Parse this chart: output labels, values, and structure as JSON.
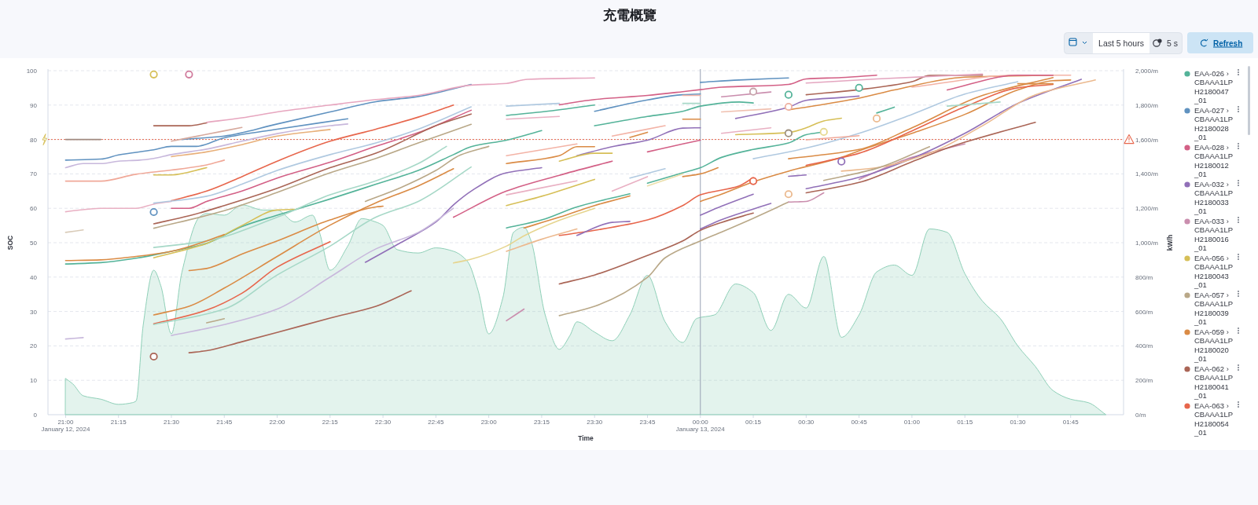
{
  "chart_data": {
    "type": "line",
    "title": "充電概覽",
    "xlabel": "Time",
    "ylabel": "SOC",
    "y2label": "kW/h",
    "annotations": [
      "Last 5 hours",
      "5 s",
      "Refresh"
    ],
    "xlim": [
      "2024-01-12T20:55",
      "2024-01-13T02:00"
    ],
    "xticks": [
      {
        "value": "2024-01-12T21:00",
        "label": "21:00\nJanuary 12, 2024"
      },
      {
        "value": "2024-01-12T21:15",
        "label": "21:15"
      },
      {
        "value": "2024-01-12T21:30",
        "label": "21:30"
      },
      {
        "value": "2024-01-12T21:45",
        "label": "21:45"
      },
      {
        "value": "2024-01-12T22:00",
        "label": "22:00"
      },
      {
        "value": "2024-01-12T22:15",
        "label": "22:15"
      },
      {
        "value": "2024-01-12T22:30",
        "label": "22:30"
      },
      {
        "value": "2024-01-12T22:45",
        "label": "22:45"
      },
      {
        "value": "2024-01-12T23:00",
        "label": "23:00"
      },
      {
        "value": "2024-01-12T23:15",
        "label": "23:15"
      },
      {
        "value": "2024-01-12T23:30",
        "label": "23:30"
      },
      {
        "value": "2024-01-12T23:45",
        "label": "23:45"
      },
      {
        "value": "2024-01-13T00:00",
        "label": "00:00\nJanuary 13, 2024"
      },
      {
        "value": "2024-01-13T00:15",
        "label": "00:15"
      },
      {
        "value": "2024-01-13T00:30",
        "label": "00:30"
      },
      {
        "value": "2024-01-13T00:45",
        "label": "00:45"
      },
      {
        "value": "2024-01-13T01:00",
        "label": "01:00"
      },
      {
        "value": "2024-01-13T01:15",
        "label": "01:15"
      },
      {
        "value": "2024-01-13T01:30",
        "label": "01:30"
      },
      {
        "value": "2024-01-13T01:45",
        "label": "01:45"
      }
    ],
    "ylim": [
      0,
      100
    ],
    "yticks": [
      0,
      10,
      20,
      30,
      40,
      50,
      60,
      70,
      80,
      90,
      100
    ],
    "y2lim": [
      0,
      2000
    ],
    "y2ticks": [
      {
        "value": 0,
        "label": "0/m"
      },
      {
        "value": 200,
        "label": "200/m"
      },
      {
        "value": 400,
        "label": "400/m"
      },
      {
        "value": 600,
        "label": "600/m"
      },
      {
        "value": 800,
        "label": "800/m"
      },
      {
        "value": 1000,
        "label": "1,000/m"
      },
      {
        "value": 1200,
        "label": "1,200/m"
      },
      {
        "value": 1400,
        "label": "1,400/m"
      },
      {
        "value": 1600,
        "label": "1,600/m"
      },
      {
        "value": 1800,
        "label": "1,800/m"
      },
      {
        "value": 2000,
        "label": "2,000/m"
      }
    ],
    "grid": "y",
    "legend": "right",
    "ref_lines": [
      {
        "axis": "y",
        "value": 80,
        "color": "#e7664c",
        "line_style": "dotted"
      },
      {
        "axis": "x",
        "value": "2024-01-13T00:00",
        "color": "#98a2b3",
        "line_style": "solid"
      }
    ],
    "series": [
      {
        "type": "area",
        "axis": "y2",
        "color": "#8fd0b8",
        "x": [
          "2024-01-12T21:00",
          "2024-01-12T21:02",
          "2024-01-12T21:05",
          "2024-01-12T21:10",
          "2024-01-12T21:15",
          "2024-01-12T21:19",
          "2024-01-12T21:20",
          "2024-01-12T21:22",
          "2024-01-12T21:25",
          "2024-01-12T21:27",
          "2024-01-12T21:30",
          "2024-01-12T21:33",
          "2024-01-12T21:38",
          "2024-01-12T21:40",
          "2024-01-12T21:45",
          "2024-01-12T21:50",
          "2024-01-12T21:56",
          "2024-01-12T22:00",
          "2024-01-12T22:05",
          "2024-01-12T22:10",
          "2024-01-12T22:12",
          "2024-01-12T22:15",
          "2024-01-12T22:20",
          "2024-01-12T22:24",
          "2024-01-12T22:28",
          "2024-01-12T22:30",
          "2024-01-12T22:34",
          "2024-01-12T22:40",
          "2024-01-12T22:45",
          "2024-01-12T22:50",
          "2024-01-12T22:54",
          "2024-01-12T22:57",
          "2024-01-12T23:00",
          "2024-01-12T23:04",
          "2024-01-12T23:07",
          "2024-01-12T23:10",
          "2024-01-12T23:12",
          "2024-01-12T23:16",
          "2024-01-12T23:20",
          "2024-01-12T23:23",
          "2024-01-12T23:25",
          "2024-01-12T23:30",
          "2024-01-12T23:35",
          "2024-01-12T23:40",
          "2024-01-12T23:45",
          "2024-01-12T23:50",
          "2024-01-12T23:55",
          "2024-01-12T23:59",
          "2024-01-13T00:04",
          "2024-01-13T00:10",
          "2024-01-13T00:15",
          "2024-01-13T00:20",
          "2024-01-13T00:25",
          "2024-01-13T00:30",
          "2024-01-13T00:35",
          "2024-01-13T00:40",
          "2024-01-13T00:45",
          "2024-01-13T00:50",
          "2024-01-13T00:55",
          "2024-01-13T01:00",
          "2024-01-13T01:05",
          "2024-01-13T01:10",
          "2024-01-13T01:15",
          "2024-01-13T01:20",
          "2024-01-13T01:25",
          "2024-01-13T01:30",
          "2024-01-13T01:35",
          "2024-01-13T01:40",
          "2024-01-13T01:45",
          "2024-01-13T01:50",
          "2024-01-13T01:55"
        ],
        "values": [
          210,
          180,
          110,
          90,
          60,
          70,
          80,
          520,
          840,
          750,
          470,
          830,
          1150,
          1170,
          1160,
          1220,
          1190,
          1190,
          1120,
          1160,
          1060,
          840,
          980,
          1140,
          1120,
          1100,
          960,
          940,
          970,
          950,
          890,
          720,
          470,
          680,
          1060,
          1090,
          1010,
          580,
          380,
          460,
          540,
          480,
          430,
          580,
          810,
          540,
          420,
          560,
          580,
          760,
          710,
          490,
          700,
          620,
          920,
          450,
          580,
          830,
          870,
          810,
          1080,
          1060,
          820,
          660,
          560,
          400,
          280,
          140,
          90,
          70,
          0
        ]
      },
      {
        "name": "EAA-026 › CBAAA1LPH2180047_01",
        "color": "#54b399",
        "x": [
          "2024-01-12T21:00",
          "2024-01-12T21:10",
          "2024-01-12T21:20",
          "2024-01-12T21:30",
          "2024-01-12T21:40",
          "2024-01-12T21:50",
          "2024-01-12T22:00",
          "2024-01-12T22:15",
          "2024-01-12T22:28",
          "2024-01-12T22:40",
          "2024-01-12T22:50",
          "2024-01-12T22:55",
          "2024-01-12T23:05",
          "2024-01-12T23:15"
        ],
        "values": [
          43.8,
          44.2,
          45.5,
          47.5,
          49.8,
          54.7,
          58,
          62.7,
          67,
          71,
          75.6,
          77.9,
          79.8,
          82.6
        ]
      },
      {
        "name": "EAA-027 › CBAAA1LPH2180028_01",
        "color": "#6092c0",
        "x": [
          "2024-01-12T21:33",
          "2024-01-12T21:45",
          "2024-01-12T22:00",
          "2024-01-12T22:15",
          "2024-01-12T22:28",
          "2024-01-12T22:40",
          "2024-01-12T22:55"
        ],
        "values": [
          80,
          81,
          84.5,
          88,
          91,
          92.5,
          96
        ]
      },
      {
        "name": "EAA-028 › CBAAA1LPH2180012_01",
        "color": "#d36086",
        "x": [
          "2024-01-12T21:30",
          "2024-01-12T21:35",
          "2024-01-12T21:40",
          "2024-01-12T21:50",
          "2024-01-12T22:00",
          "2024-01-12T22:15",
          "2024-01-12T22:28",
          "2024-01-12T22:40",
          "2024-01-12T22:55"
        ],
        "values": [
          60,
          60,
          62,
          65,
          68.8,
          73.4,
          78,
          82,
          88.5
        ]
      },
      {
        "name": "EAA-032 › CBAAA1LPH2180033_01",
        "color": "#9170b8",
        "x": [
          "2024-01-12T22:25",
          "2024-01-12T22:35",
          "2024-01-12T22:45",
          "2024-01-12T22:50",
          "2024-01-12T22:55",
          "2024-01-12T23:05",
          "2024-01-12T23:15"
        ],
        "values": [
          44.3,
          50,
          56,
          61,
          65,
          70.3,
          71.8
        ]
      },
      {
        "name": "EAA-033 › CBAAA1LPH2180016_01",
        "color": "#ca8eae",
        "x": [
          "2024-01-13T00:45",
          "2024-01-13T01:00",
          "2024-01-13T01:15"
        ],
        "values": [
          68.4,
          74.8,
          78.7
        ]
      },
      {
        "name": "EAA-056 › CBAAA1LPH2180043_01",
        "color": "#d6bf57",
        "x": [
          "2024-01-12T21:25",
          "2024-01-12T21:40",
          "2024-01-12T21:50",
          "2024-01-12T22:00",
          "2024-01-12T22:05"
        ],
        "values": [
          45.6,
          49.8,
          55,
          59.5,
          59.7
        ]
      },
      {
        "name": "EAA-057 › CBAAA1LPH2180039_01",
        "color": "#b9a888",
        "x": [
          "2024-01-12T23:20",
          "2024-01-12T23:30",
          "2024-01-12T23:45",
          "2024-01-12T23:50",
          "2024-01-13T00:00",
          "2024-01-13T00:06",
          "2024-01-13T00:15",
          "2024-01-13T00:25"
        ],
        "values": [
          28.8,
          31.5,
          39.9,
          45.6,
          50.5,
          53.1,
          57.1,
          61.8
        ]
      },
      {
        "name": "EAA-059 › CBAAA1LPH2180020_01",
        "color": "#da8b45",
        "x": [
          "2024-01-13T00:00",
          "2024-01-13T00:06",
          "2024-01-13T00:15",
          "2024-01-13T00:25",
          "2024-01-13T00:40",
          "2024-01-13T00:45",
          "2024-01-13T01:00",
          "2024-01-13T01:15",
          "2024-01-13T01:30",
          "2024-01-13T01:40",
          "2024-01-13T01:45"
        ],
        "values": [
          62,
          64.1,
          67.7,
          70.8,
          74.8,
          76.7,
          81.8,
          87.3,
          94.4,
          97.1,
          97.3
        ]
      },
      {
        "name": "EAA-062 › CBAAA1LPH2180041_01",
        "color": "#aa6556",
        "x": [
          "2024-01-12T21:35",
          "2024-01-12T21:40",
          "2024-01-12T21:50",
          "2024-01-12T22:00",
          "2024-01-12T22:15",
          "2024-01-12T22:28",
          "2024-01-12T22:38"
        ],
        "values": [
          18,
          18.6,
          21.2,
          23.9,
          28.1,
          31.5,
          36
        ]
      },
      {
        "name": "EAA-063 › CBAAA1LPH2180054_01",
        "color": "#e7664c",
        "x": [
          "2024-01-12T21:30",
          "2024-01-12T21:40",
          "2024-01-12T21:50",
          "2024-01-12T22:00",
          "2024-01-12T22:15",
          "2024-01-12T22:28",
          "2024-01-12T22:40",
          "2024-01-12T22:50"
        ],
        "values": [
          62.2,
          65,
          69.2,
          73.7,
          79.5,
          83,
          86.5,
          90
        ]
      },
      {
        "color": "#a08a80",
        "x": [
          "2024-01-12T21:00",
          "2024-01-12T21:10"
        ],
        "values": [
          80,
          80
        ]
      },
      {
        "color": "#6092c0",
        "x": [
          "2024-01-12T21:00",
          "2024-01-12T21:10",
          "2024-01-12T21:15",
          "2024-01-12T21:25",
          "2024-01-12T21:30",
          "2024-01-12T21:37",
          "2024-01-12T21:45",
          "2024-01-12T22:00",
          "2024-01-12T22:20"
        ],
        "values": [
          74,
          74.3,
          75.5,
          77,
          78,
          78,
          80.5,
          83,
          86
        ]
      },
      {
        "color": "#aa6556",
        "x": [
          "2024-01-12T21:25",
          "2024-01-12T21:35",
          "2024-01-12T21:40"
        ],
        "values": [
          84,
          84,
          84.8
        ]
      },
      {
        "color": "#e7a6bf",
        "x": [
          "2024-01-12T21:40",
          "2024-01-12T21:50",
          "2024-01-12T22:00",
          "2024-01-12T22:15",
          "2024-01-12T22:28",
          "2024-01-12T22:40",
          "2024-01-12T22:55",
          "2024-01-12T23:05",
          "2024-01-12T23:11",
          "2024-01-12T23:30"
        ],
        "values": [
          85,
          86.3,
          88,
          90,
          91.6,
          92.8,
          95.8,
          96.3,
          97.5,
          97.9
        ]
      },
      {
        "color": "#d6a89c",
        "x": [
          "2024-01-12T21:30",
          "2024-01-12T21:40",
          "2024-01-12T21:50"
        ],
        "values": [
          79.5,
          81.5,
          83.5
        ]
      },
      {
        "color": "#c8b8dc",
        "x": [
          "2024-01-12T21:00",
          "2024-01-12T21:05",
          "2024-01-12T21:10",
          "2024-01-12T21:15",
          "2024-01-12T21:21",
          "2024-01-12T21:25",
          "2024-01-12T21:30",
          "2024-01-12T21:40",
          "2024-01-12T21:50",
          "2024-01-12T22:00",
          "2024-01-12T22:15",
          "2024-01-12T22:20"
        ],
        "values": [
          71.8,
          73,
          73,
          73.7,
          74,
          74.5,
          75.6,
          77.2,
          79.5,
          81.7,
          84,
          84.5
        ]
      },
      {
        "color": "#e8b07a",
        "x": [
          "2024-01-12T21:30",
          "2024-01-12T21:40",
          "2024-01-12T21:50",
          "2024-01-12T22:00",
          "2024-01-12T22:15"
        ],
        "values": [
          75,
          76.4,
          78.5,
          81,
          82.9
        ]
      },
      {
        "color": "#f0a898",
        "x": [
          "2024-01-12T21:00",
          "2024-01-12T21:10",
          "2024-01-12T21:20",
          "2024-01-12T21:30",
          "2024-01-12T21:40",
          "2024-01-12T21:45"
        ],
        "values": [
          67.9,
          67.9,
          69.9,
          71.1,
          72.6,
          74
        ]
      },
      {
        "color": "#d6bf57",
        "x": [
          "2024-01-12T21:25",
          "2024-01-12T21:30",
          "2024-01-12T21:40"
        ],
        "values": [
          69.7,
          69.7,
          71.8
        ]
      },
      {
        "color": "#e9b0c3",
        "x": [
          "2024-01-12T21:00",
          "2024-01-12T21:10",
          "2024-01-12T21:20",
          "2024-01-12T21:25",
          "2024-01-12T21:30"
        ],
        "values": [
          59,
          60,
          60,
          61.2,
          62
        ]
      },
      {
        "color": "#b0c9e0",
        "x": [
          "2024-01-12T21:25",
          "2024-01-12T21:40",
          "2024-01-12T21:50",
          "2024-01-12T22:00",
          "2024-01-12T22:15",
          "2024-01-12T22:28",
          "2024-01-12T22:40",
          "2024-01-12T22:55"
        ],
        "values": [
          61.5,
          63.5,
          67,
          71,
          75.6,
          79,
          83,
          89.5
        ]
      },
      {
        "color": "#aa6556",
        "x": [
          "2024-01-12T21:25",
          "2024-01-12T21:35",
          "2024-01-12T21:45",
          "2024-01-12T22:00",
          "2024-01-12T22:15",
          "2024-01-12T22:28",
          "2024-01-12T22:46",
          "2024-01-12T22:55"
        ],
        "values": [
          55.5,
          57.8,
          60.8,
          65.8,
          71.8,
          76,
          84.4,
          87.4
        ]
      },
      {
        "color": "#b9a888",
        "x": [
          "2024-01-12T21:25",
          "2024-01-12T21:45",
          "2024-01-12T22:00",
          "2024-01-12T22:15",
          "2024-01-12T22:28",
          "2024-01-12T22:40",
          "2024-01-12T22:55"
        ],
        "values": [
          54.2,
          59.3,
          64.6,
          70.3,
          74.5,
          79,
          84.4
        ]
      },
      {
        "color": "#a6d8c7",
        "x": [
          "2024-01-12T21:25",
          "2024-01-12T21:40",
          "2024-01-12T22:00",
          "2024-01-12T22:15",
          "2024-01-12T22:28",
          "2024-01-12T22:40",
          "2024-01-12T22:48"
        ],
        "values": [
          48.6,
          50.5,
          57.4,
          63.9,
          68,
          73,
          78
        ]
      },
      {
        "color": "#da8b45",
        "x": [
          "2024-01-12T21:00",
          "2024-01-12T21:10",
          "2024-01-12T21:20",
          "2024-01-12T21:30",
          "2024-01-12T21:40",
          "2024-01-12T21:45"
        ],
        "values": [
          44.8,
          45,
          46,
          47.5,
          50.5,
          52.4
        ]
      },
      {
        "color": "#da8b45",
        "x": [
          "2024-01-12T21:35",
          "2024-01-12T21:40",
          "2024-01-12T21:50",
          "2024-01-12T22:00",
          "2024-01-12T22:15",
          "2024-01-12T22:28",
          "2024-01-12T22:30"
        ],
        "values": [
          41.9,
          42.5,
          46.7,
          50.5,
          56.6,
          60.4,
          60.6
        ]
      },
      {
        "color": "#da8b45",
        "x": [
          "2024-01-12T21:25",
          "2024-01-12T21:35",
          "2024-01-12T21:45",
          "2024-01-12T22:00",
          "2024-01-12T22:15",
          "2024-01-12T22:28",
          "2024-01-12T22:40",
          "2024-01-12T22:50"
        ],
        "values": [
          29,
          31.5,
          36.8,
          46,
          55.1,
          61.6,
          66.5,
          71.5
        ]
      },
      {
        "color": "#e7664c",
        "x": [
          "2024-01-12T21:25",
          "2024-01-12T21:40",
          "2024-01-12T21:50",
          "2024-01-12T22:00",
          "2024-01-12T22:15"
        ],
        "values": [
          26.4,
          30.4,
          35.3,
          42.9,
          50.3
        ]
      },
      {
        "color": "#a6d8c7",
        "x": [
          "2024-01-12T21:25",
          "2024-01-12T21:45",
          "2024-01-12T22:00",
          "2024-01-12T22:15",
          "2024-01-12T22:28",
          "2024-01-12T22:40",
          "2024-01-12T22:55"
        ],
        "values": [
          26.2,
          30.7,
          40.6,
          49,
          57.4,
          62,
          72
        ]
      },
      {
        "color": "#c8b8dc",
        "x": [
          "2024-01-12T21:30",
          "2024-01-12T21:45",
          "2024-01-12T22:00",
          "2024-01-12T22:15",
          "2024-01-12T22:28",
          "2024-01-12T22:40",
          "2024-01-12T22:50"
        ],
        "values": [
          23,
          26.2,
          30.7,
          40,
          48.2,
          53,
          60
        ]
      },
      {
        "color": "#d9cbb8",
        "x": [
          "2024-01-12T21:00",
          "2024-01-12T21:05"
        ],
        "values": [
          53,
          53.7
        ]
      },
      {
        "color": "#c8b8dc",
        "x": [
          "2024-01-12T21:00",
          "2024-01-12T21:05"
        ],
        "values": [
          22,
          22.4
        ]
      },
      {
        "color": "#b9a888",
        "x": [
          "2024-01-12T21:40",
          "2024-01-12T21:45"
        ],
        "values": [
          26.7,
          27.9
        ]
      },
      {
        "color": "#b9a888",
        "x": [
          "2024-01-12T22:25",
          "2024-01-12T22:35",
          "2024-01-12T22:45",
          "2024-01-12T22:52",
          "2024-01-12T23:00"
        ],
        "values": [
          62,
          66,
          71,
          75.5,
          78
        ]
      },
      {
        "color": "#e6d58f",
        "x": [
          "2024-01-12T22:50",
          "2024-01-12T22:55",
          "2024-01-12T23:05",
          "2024-01-12T23:10",
          "2024-01-12T23:20",
          "2024-01-12T23:30"
        ],
        "values": [
          44.1,
          45.2,
          49,
          52,
          56.5,
          60
        ]
      },
      {
        "color": "#ecb98f",
        "x": [
          "2024-01-12T23:05",
          "2024-01-12T23:15",
          "2024-01-12T23:25"
        ],
        "values": [
          47.5,
          51,
          54
        ]
      },
      {
        "color": "#d36086",
        "x": [
          "2024-01-12T22:50",
          "2024-01-12T23:05",
          "2024-01-12T23:20",
          "2024-01-12T23:35"
        ],
        "values": [
          57.4,
          65,
          69.6,
          73.7
        ]
      },
      {
        "color": "#b0c9e0",
        "x": [
          "2024-01-12T23:05",
          "2024-01-12T23:20"
        ],
        "values": [
          89.7,
          90.5
        ]
      },
      {
        "color": "#54b399",
        "x": [
          "2024-01-12T23:05",
          "2024-01-12T23:15",
          "2024-01-12T23:30"
        ],
        "values": [
          87,
          88,
          90
        ]
      },
      {
        "color": "#d36086",
        "x": [
          "2024-01-12T23:20",
          "2024-01-12T23:30",
          "2024-01-12T23:45",
          "2024-01-12T23:55",
          "2024-01-13T00:00",
          "2024-01-13T00:06",
          "2024-01-13T00:25",
          "2024-01-13T00:30",
          "2024-01-13T00:40",
          "2024-01-13T00:50"
        ],
        "values": [
          90.1,
          91.6,
          92.8,
          93.9,
          94.5,
          95.2,
          96,
          97.6,
          98,
          98.7
        ]
      },
      {
        "color": "#6092c0",
        "x": [
          "2024-01-12T23:30",
          "2024-01-12T23:45",
          "2024-01-12T23:55",
          "2024-01-13T00:00"
        ],
        "values": [
          88.2,
          91.5,
          93,
          93.2
        ]
      },
      {
        "color": "#6092c0",
        "x": [
          "2024-01-13T00:00",
          "2024-01-13T00:11",
          "2024-01-13T00:25"
        ],
        "values": [
          96.6,
          97.3,
          97.9
        ]
      },
      {
        "color": "#54b399",
        "x": [
          "2024-01-12T23:30",
          "2024-01-12T23:45",
          "2024-01-12T23:55",
          "2024-01-13T00:00",
          "2024-01-13T00:11",
          "2024-01-13T00:15"
        ],
        "values": [
          84,
          86.7,
          88.2,
          89.7,
          90.9,
          90.6
        ]
      },
      {
        "color": "#e9b0c3",
        "x": [
          "2024-01-12T23:05",
          "2024-01-12T23:20"
        ],
        "values": [
          85.9,
          86.7
        ]
      },
      {
        "color": "#f3b3a6",
        "x": [
          "2024-01-12T23:05",
          "2024-01-12T23:25"
        ],
        "values": [
          75.3,
          78.7
        ]
      },
      {
        "color": "#da8b45",
        "x": [
          "2024-01-12T23:05",
          "2024-01-12T23:20",
          "2024-01-12T23:25",
          "2024-01-12T23:30"
        ],
        "values": [
          73,
          75.3,
          77.9,
          77.9
        ]
      },
      {
        "color": "#9170b8",
        "x": [
          "2024-01-12T23:25",
          "2024-01-12T23:35",
          "2024-01-12T23:45",
          "2024-01-12T23:55",
          "2024-01-13T00:00"
        ],
        "values": [
          75.3,
          77.9,
          79.8,
          83.3,
          83.4
        ]
      },
      {
        "color": "#d6bf57",
        "x": [
          "2024-01-12T23:20",
          "2024-01-12T23:30",
          "2024-01-12T23:35"
        ],
        "values": [
          73.7,
          76,
          76
        ]
      },
      {
        "color": "#d36086",
        "x": [
          "2024-01-12T23:45",
          "2024-01-12T23:55",
          "2024-01-13T00:00"
        ],
        "values": [
          76.4,
          78.7,
          79.8
        ]
      },
      {
        "color": "#f3b3a6",
        "x": [
          "2024-01-12T23:35",
          "2024-01-12T23:50"
        ],
        "values": [
          81,
          84
        ]
      },
      {
        "color": "#da8b45",
        "x": [
          "2024-01-12T23:40",
          "2024-01-12T23:45"
        ],
        "values": [
          80.6,
          82.1
        ]
      },
      {
        "color": "#54b399",
        "x": [
          "2024-01-12T23:45",
          "2024-01-12T23:55",
          "2024-01-13T00:00",
          "2024-01-13T00:06",
          "2024-01-13T00:15",
          "2024-01-13T00:25",
          "2024-01-13T00:30",
          "2024-01-13T00:35"
        ],
        "values": [
          67.3,
          70.3,
          71.8,
          74.8,
          77.1,
          79,
          81.4,
          82.2
        ]
      },
      {
        "color": "#da8b45",
        "x": [
          "2024-01-12T23:55",
          "2024-01-13T00:00",
          "2024-01-13T00:05"
        ],
        "values": [
          69.2,
          70,
          71.8
        ]
      },
      {
        "color": "#e9b0c3",
        "x": [
          "2024-01-12T23:35",
          "2024-01-12T23:45"
        ],
        "values": [
          65,
          69.2
        ]
      },
      {
        "color": "#b0c9e0",
        "x": [
          "2024-01-12T23:40",
          "2024-01-12T23:50"
        ],
        "values": [
          68.8,
          71.5
        ]
      },
      {
        "color": "#ebdfab",
        "x": [
          "2024-01-12T23:45",
          "2024-01-12T23:55"
        ],
        "values": [
          66.5,
          70
        ]
      },
      {
        "color": "#54b399",
        "x": [
          "2024-01-12T23:05",
          "2024-01-12T23:15",
          "2024-01-12T23:25",
          "2024-01-12T23:40"
        ],
        "values": [
          54.3,
          56.6,
          60.4,
          64.2
        ]
      },
      {
        "color": "#da8b45",
        "x": [
          "2024-01-12T23:10",
          "2024-01-12T23:20",
          "2024-01-12T23:30",
          "2024-01-12T23:40"
        ],
        "values": [
          54.3,
          57.4,
          60.8,
          63.6
        ]
      },
      {
        "color": "#e7664c",
        "x": [
          "2024-01-12T23:20",
          "2024-01-12T23:30",
          "2024-01-12T23:45",
          "2024-01-12T23:55",
          "2024-01-13T00:00",
          "2024-01-13T00:11",
          "2024-01-13T00:15"
        ],
        "values": [
          52.1,
          53.6,
          56.6,
          60.8,
          63.9,
          66.5,
          68.9
        ]
      },
      {
        "color": "#9170b8",
        "x": [
          "2024-01-12T23:25",
          "2024-01-12T23:35",
          "2024-01-12T23:40"
        ],
        "values": [
          52.1,
          55.9,
          56.2
        ]
      },
      {
        "color": "#d6bf57",
        "x": [
          "2024-01-12T23:05",
          "2024-01-12T23:15",
          "2024-01-12T23:30"
        ],
        "values": [
          60.8,
          63.5,
          68.4
        ]
      },
      {
        "color": "#e9b0c3",
        "x": [
          "2024-01-12T23:05",
          "2024-01-12T23:25"
        ],
        "values": [
          63.9,
          68
        ]
      },
      {
        "color": "#aa6556",
        "x": [
          "2024-01-12T23:20",
          "2024-01-12T23:30",
          "2024-01-12T23:45",
          "2024-01-12T23:55",
          "2024-01-13T00:00",
          "2024-01-13T00:06",
          "2024-01-13T00:15"
        ],
        "values": [
          38,
          40.6,
          46.3,
          50.5,
          53.6,
          55.9,
          58.6
        ]
      },
      {
        "color": "#ca8eae",
        "x": [
          "2024-01-12T23:05",
          "2024-01-12T23:10"
        ],
        "values": [
          27.3,
          30.7
        ]
      },
      {
        "color": "#9170b8",
        "x": [
          "2024-01-13T00:00",
          "2024-01-13T00:06",
          "2024-01-13T00:15"
        ],
        "values": [
          58,
          60.6,
          64.1
        ]
      },
      {
        "color": "#9170b8",
        "x": [
          "2024-01-13T00:00",
          "2024-01-13T00:06",
          "2024-01-13T00:20"
        ],
        "values": [
          54,
          56.7,
          61.4
        ]
      },
      {
        "color": "#aa6556",
        "x": [
          "2024-01-13T00:30",
          "2024-01-13T00:45",
          "2024-01-13T01:00",
          "2024-01-13T01:10",
          "2024-01-13T01:15",
          "2024-01-13T01:35"
        ],
        "values": [
          64.5,
          67.5,
          73.5,
          77.5,
          79.2,
          85
        ]
      },
      {
        "color": "#9170b8",
        "x": [
          "2024-01-13T00:30",
          "2024-01-13T00:45",
          "2024-01-13T01:00",
          "2024-01-13T01:15",
          "2024-01-13T01:30",
          "2024-01-13T01:48"
        ],
        "values": [
          65.7,
          69,
          74.5,
          81.8,
          90.5,
          97.5
        ]
      },
      {
        "color": "#ebb98e",
        "x": [
          "2024-01-13T00:40",
          "2024-01-13T00:50",
          "2024-01-13T01:05",
          "2024-01-13T01:20",
          "2024-01-13T01:35",
          "2024-01-13T01:52"
        ],
        "values": [
          70.8,
          71.8,
          76,
          84,
          93,
          97.3
        ]
      },
      {
        "color": "#b9a888",
        "x": [
          "2024-01-13T00:35",
          "2024-01-13T00:50",
          "2024-01-13T01:05"
        ],
        "values": [
          68.1,
          71.6,
          77.9
        ]
      },
      {
        "color": "#b0c9e0",
        "x": [
          "2024-01-13T00:15",
          "2024-01-13T00:30",
          "2024-01-13T00:45",
          "2024-01-13T01:00",
          "2024-01-13T01:15",
          "2024-01-13T01:30"
        ],
        "values": [
          74.4,
          77.5,
          81.8,
          87.3,
          93.2,
          96.8
        ]
      },
      {
        "color": "#da8b45",
        "x": [
          "2024-01-13T00:25",
          "2024-01-13T00:45",
          "2024-01-13T01:00",
          "2024-01-13T01:20",
          "2024-01-13T01:40"
        ],
        "values": [
          74.4,
          77.1,
          83.4,
          92.8,
          98
        ]
      },
      {
        "color": "#e7664c",
        "x": [
          "2024-01-13T00:30",
          "2024-01-13T00:45",
          "2024-01-13T01:00",
          "2024-01-13T01:15",
          "2024-01-13T01:30",
          "2024-01-13T01:40"
        ],
        "values": [
          72.5,
          76,
          82.5,
          89.5,
          95,
          96
        ]
      },
      {
        "color": "#a6d8c7",
        "x": [
          "2024-01-13T01:10",
          "2024-01-13T01:25"
        ],
        "values": [
          89.7,
          90.9
        ]
      },
      {
        "color": "#54b399",
        "x": [
          "2024-01-13T00:50",
          "2024-01-13T00:55"
        ],
        "values": [
          87.7,
          89.4
        ]
      },
      {
        "color": "#d6bf57",
        "x": [
          "2024-01-13T00:10",
          "2024-01-13T00:25",
          "2024-01-13T00:30",
          "2024-01-13T00:35",
          "2024-01-13T00:40"
        ],
        "values": [
          81.4,
          82,
          83.4,
          85.4,
          86.2
        ]
      },
      {
        "color": "#e9b0c3",
        "x": [
          "2024-01-13T00:06",
          "2024-01-13T00:20"
        ],
        "values": [
          81.8,
          83.4
        ]
      },
      {
        "color": "#9170b8",
        "x": [
          "2024-01-13T00:10",
          "2024-01-13T00:25",
          "2024-01-13T00:30",
          "2024-01-13T00:40",
          "2024-01-13T00:45"
        ],
        "values": [
          86.1,
          89.4,
          91.4,
          92.2,
          92.6
        ]
      },
      {
        "color": "#da8b45",
        "x": [
          "2024-01-13T00:25",
          "2024-01-13T00:45",
          "2024-01-13T00:55",
          "2024-01-13T01:15",
          "2024-01-13T01:40"
        ],
        "values": [
          88.6,
          92,
          94.4,
          98.1,
          98.7
        ]
      },
      {
        "color": "#ca8eae",
        "x": [
          "2024-01-13T00:06",
          "2024-01-13T00:20"
        ],
        "values": [
          92.4,
          93.8
        ]
      },
      {
        "color": "#aa6556",
        "x": [
          "2024-01-13T00:30",
          "2024-01-13T00:45",
          "2024-01-13T01:00",
          "2024-01-13T01:05",
          "2024-01-13T01:20"
        ],
        "values": [
          93,
          94.5,
          96.8,
          98.6,
          98.7
        ]
      },
      {
        "color": "#e4a6c0",
        "x": [
          "2024-01-13T00:30",
          "2024-01-13T00:50",
          "2024-01-13T01:20"
        ],
        "values": [
          96.4,
          97.6,
          99
        ]
      },
      {
        "color": "#f3b3a6",
        "x": [
          "2024-01-13T01:00",
          "2024-01-13T01:30",
          "2024-01-13T01:45"
        ],
        "values": [
          95.2,
          98.7,
          98.7
        ]
      },
      {
        "color": "#d36086",
        "x": [
          "2024-01-13T01:10",
          "2024-01-13T01:30",
          "2024-01-13T01:40"
        ],
        "values": [
          94.4,
          98.7,
          98.7
        ]
      },
      {
        "color": "#f0c0b0",
        "x": [
          "2024-01-13T00:06",
          "2024-01-13T00:20"
        ],
        "values": [
          88,
          88.9
        ]
      },
      {
        "color": "#9170b8",
        "x": [
          "2024-01-13T00:25",
          "2024-01-13T00:30"
        ],
        "values": [
          69.3,
          69.7
        ]
      },
      {
        "color": "#f0a898",
        "x": [
          "2024-01-13T00:30",
          "2024-01-13T00:45"
        ],
        "values": [
          79.9,
          81.1
        ]
      },
      {
        "color": "#a6d8c7",
        "x": [
          "2024-01-12T23:55",
          "2024-01-13T00:00"
        ],
        "values": [
          90.5,
          90.5
        ]
      },
      {
        "color": "#f3b3a6",
        "x": [
          "2024-01-12T23:55",
          "2024-01-13T00:00"
        ],
        "values": [
          92.8,
          92.8
        ]
      },
      {
        "color": "#ca8eae",
        "x": [
          "2024-01-13T00:25",
          "2024-01-13T00:30",
          "2024-01-13T00:35"
        ],
        "values": [
          61.8,
          62,
          64.5
        ]
      },
      {
        "color": "#da8b45",
        "x": [
          "2024-01-12T23:55",
          "2024-01-13T00:00"
        ],
        "values": [
          85.9,
          85.9
        ]
      },
      {
        "color": "#da8b45",
        "x": [
          "2024-01-13T01:30",
          "2024-01-13T01:40"
        ],
        "values": [
          96.2,
          96.2
        ]
      },
      {
        "type": "scatter",
        "marker": "circle",
        "color": "#d6bf57",
        "x": [
          "2024-01-12T21:25"
        ],
        "values": [
          98.9
        ]
      },
      {
        "type": "scatter",
        "marker": "circle",
        "color": "#d07a9c",
        "x": [
          "2024-01-12T21:35"
        ],
        "values": [
          98.9
        ]
      },
      {
        "type": "scatter",
        "marker": "circle",
        "color": "#6092c0",
        "x": [
          "2024-01-12T21:25"
        ],
        "values": [
          58.9
        ]
      },
      {
        "type": "scatter",
        "marker": "circle",
        "color": "#aa6556",
        "x": [
          "2024-01-12T21:25"
        ],
        "values": [
          16.9
        ]
      },
      {
        "type": "scatter",
        "marker": "circle",
        "color": "#c7a3ab",
        "x": [
          "2024-01-13T00:15"
        ],
        "values": [
          93.9
        ]
      },
      {
        "type": "scatter",
        "marker": "circle",
        "color": "#54b399",
        "x": [
          "2024-01-13T00:25"
        ],
        "values": [
          93
        ]
      },
      {
        "type": "scatter",
        "marker": "circle",
        "color": "#54b399",
        "x": [
          "2024-01-13T00:45"
        ],
        "values": [
          95
        ]
      },
      {
        "type": "scatter",
        "marker": "circle",
        "color": "#eeb0a0",
        "x": [
          "2024-01-13T00:25"
        ],
        "values": [
          89.5
        ]
      },
      {
        "type": "scatter",
        "marker": "circle",
        "color": "#9d8f7e",
        "x": [
          "2024-01-13T00:25"
        ],
        "values": [
          81.8
        ]
      },
      {
        "type": "scatter",
        "marker": "circle",
        "color": "#e6d98f",
        "x": [
          "2024-01-13T00:35"
        ],
        "values": [
          82.2
        ]
      },
      {
        "type": "scatter",
        "marker": "circle",
        "color": "#ebb98e",
        "x": [
          "2024-01-13T00:50"
        ],
        "values": [
          86.1
        ]
      },
      {
        "type": "scatter",
        "marker": "circle",
        "color": "#e7664c",
        "x": [
          "2024-01-13T00:15"
        ],
        "values": [
          67.9
        ]
      },
      {
        "type": "scatter",
        "marker": "circle",
        "color": "#ebb98e",
        "x": [
          "2024-01-13T00:25"
        ],
        "values": [
          64.1
        ]
      },
      {
        "type": "scatter",
        "marker": "circle",
        "color": "#9170b8",
        "x": [
          "2024-01-13T00:40"
        ],
        "values": [
          73.6
        ]
      }
    ]
  }
}
